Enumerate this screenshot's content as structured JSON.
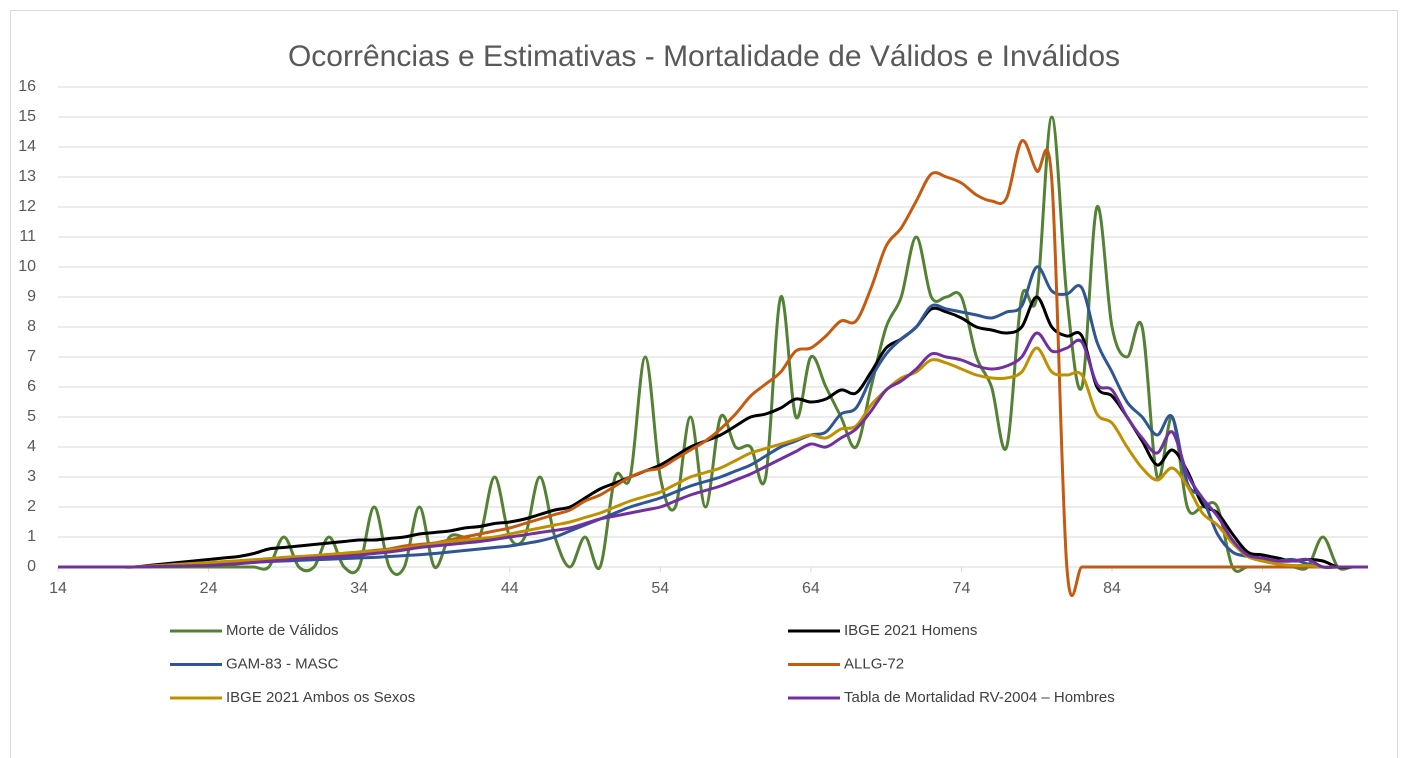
{
  "chart_data": {
    "type": "line",
    "title": "Ocorrências e Estimativas - Mortalidade de Válidos e Inválidos",
    "x": [
      14,
      15,
      16,
      17,
      18,
      19,
      20,
      21,
      22,
      23,
      24,
      25,
      26,
      27,
      28,
      29,
      30,
      31,
      32,
      33,
      34,
      35,
      36,
      37,
      38,
      39,
      40,
      41,
      42,
      43,
      44,
      45,
      46,
      47,
      48,
      49,
      50,
      51,
      52,
      53,
      54,
      55,
      56,
      57,
      58,
      59,
      60,
      61,
      62,
      63,
      64,
      65,
      66,
      67,
      68,
      69,
      70,
      71,
      72,
      73,
      74,
      75,
      76,
      77,
      78,
      79,
      80,
      81,
      82,
      83,
      84,
      85,
      86,
      87,
      88,
      89,
      90,
      91,
      92,
      93,
      94,
      95,
      96,
      97,
      98,
      99,
      100,
      101
    ],
    "xlim": [
      14,
      101
    ],
    "xticks": [
      14,
      24,
      34,
      44,
      54,
      64,
      74,
      84,
      94
    ],
    "ylim": [
      0,
      16
    ],
    "yticks": [
      0,
      1,
      2,
      3,
      4,
      5,
      6,
      7,
      8,
      9,
      10,
      11,
      12,
      13,
      14,
      15,
      16
    ],
    "grid": true,
    "legend": "bottom",
    "series": [
      {
        "name": "Morte de Válidos",
        "color": "#548235",
        "values": [
          0,
          0,
          0,
          0,
          0,
          0,
          0,
          0,
          0,
          0,
          0,
          0,
          0,
          0,
          0,
          1,
          0,
          0,
          1,
          0,
          0,
          2,
          0,
          0,
          2,
          0,
          1,
          1,
          1,
          3,
          1,
          1,
          3,
          1,
          0,
          1,
          0,
          3,
          3,
          7,
          3,
          2,
          5,
          2,
          5,
          4,
          4,
          3,
          9,
          5,
          7,
          6,
          5,
          4,
          6,
          8,
          9,
          11,
          9,
          9,
          9,
          7,
          6,
          4,
          9,
          9,
          15,
          9,
          6,
          12,
          8,
          7,
          8,
          3,
          5,
          2,
          2,
          2,
          0,
          0,
          0,
          0,
          0,
          0,
          1,
          0,
          0,
          0
        ]
      },
      {
        "name": "IBGE 2021  Homens",
        "color": "#000000",
        "values": [
          0,
          0,
          0,
          0,
          0,
          0,
          0.05,
          0.1,
          0.15,
          0.2,
          0.25,
          0.3,
          0.35,
          0.45,
          0.6,
          0.65,
          0.7,
          0.75,
          0.8,
          0.85,
          0.9,
          0.9,
          0.95,
          1.0,
          1.1,
          1.15,
          1.2,
          1.3,
          1.35,
          1.45,
          1.5,
          1.6,
          1.75,
          1.9,
          2.0,
          2.3,
          2.6,
          2.8,
          3.0,
          3.2,
          3.4,
          3.7,
          4.0,
          4.2,
          4.4,
          4.7,
          5.0,
          5.1,
          5.3,
          5.6,
          5.5,
          5.6,
          5.9,
          5.8,
          6.5,
          7.3,
          7.6,
          8.0,
          8.6,
          8.5,
          8.3,
          8.0,
          7.9,
          7.8,
          8.0,
          9.0,
          8.0,
          7.7,
          7.7,
          6.0,
          5.7,
          5.0,
          4.2,
          3.4,
          3.9,
          3.2,
          2.1,
          1.8,
          1.1,
          0.5,
          0.4,
          0.3,
          0.2,
          0.25,
          0.2,
          0,
          0,
          0
        ]
      },
      {
        "name": "GAM-83 - MASC",
        "color": "#2f5597",
        "values": [
          0,
          0,
          0,
          0,
          0,
          0,
          0.02,
          0.04,
          0.06,
          0.08,
          0.1,
          0.12,
          0.14,
          0.16,
          0.18,
          0.2,
          0.22,
          0.24,
          0.26,
          0.28,
          0.3,
          0.32,
          0.35,
          0.38,
          0.41,
          0.45,
          0.5,
          0.55,
          0.6,
          0.65,
          0.7,
          0.78,
          0.87,
          1.0,
          1.2,
          1.4,
          1.6,
          1.8,
          2.0,
          2.15,
          2.3,
          2.5,
          2.7,
          2.85,
          3.0,
          3.2,
          3.4,
          3.7,
          4.0,
          4.2,
          4.4,
          4.5,
          5.1,
          5.3,
          6.3,
          7.1,
          7.6,
          8.0,
          8.7,
          8.6,
          8.5,
          8.4,
          8.3,
          8.5,
          8.7,
          10.0,
          9.2,
          9.1,
          9.3,
          7.5,
          6.5,
          5.5,
          5.0,
          4.4,
          5.0,
          2.8,
          2.3,
          1.1,
          0.5,
          0.35,
          0.2,
          0.2,
          0.25,
          0.1,
          0,
          0,
          0,
          0
        ]
      },
      {
        "name": "ALLG-72",
        "color": "#c55a11",
        "values": [
          0,
          0,
          0,
          0,
          0,
          0,
          0.02,
          0.04,
          0.06,
          0.08,
          0.1,
          0.13,
          0.16,
          0.19,
          0.22,
          0.25,
          0.3,
          0.34,
          0.38,
          0.42,
          0.5,
          0.55,
          0.6,
          0.7,
          0.75,
          0.8,
          0.9,
          1.0,
          1.1,
          1.2,
          1.3,
          1.45,
          1.6,
          1.75,
          1.9,
          2.2,
          2.4,
          2.7,
          3.0,
          3.2,
          3.3,
          3.6,
          3.9,
          4.2,
          4.6,
          5.1,
          5.7,
          6.1,
          6.5,
          7.2,
          7.3,
          7.7,
          8.2,
          8.2,
          9.3,
          10.7,
          11.3,
          12.2,
          13.1,
          13.0,
          12.8,
          12.4,
          12.2,
          12.3,
          14.2,
          13.2,
          12.9,
          0,
          0,
          0,
          0,
          0,
          0,
          0,
          0,
          0,
          0,
          0,
          0,
          0,
          0,
          0,
          0,
          0,
          0,
          0,
          0,
          0
        ]
      },
      {
        "name": "IBGE 2021  Ambos os Sexos",
        "color": "#bf9000",
        "values": [
          0,
          0,
          0,
          0,
          0,
          0,
          0.03,
          0.06,
          0.09,
          0.12,
          0.15,
          0.18,
          0.21,
          0.24,
          0.28,
          0.32,
          0.35,
          0.38,
          0.42,
          0.46,
          0.5,
          0.53,
          0.57,
          0.62,
          0.7,
          0.78,
          0.85,
          0.9,
          0.95,
          1.0,
          1.1,
          1.2,
          1.3,
          1.4,
          1.5,
          1.65,
          1.8,
          2.0,
          2.2,
          2.35,
          2.5,
          2.75,
          3.0,
          3.15,
          3.3,
          3.55,
          3.8,
          3.95,
          4.1,
          4.25,
          4.4,
          4.3,
          4.6,
          4.7,
          5.4,
          5.9,
          6.3,
          6.5,
          6.9,
          6.8,
          6.6,
          6.4,
          6.3,
          6.3,
          6.5,
          7.3,
          6.5,
          6.4,
          6.4,
          5.1,
          4.8,
          4.0,
          3.3,
          2.9,
          3.3,
          2.7,
          1.8,
          1.4,
          0.8,
          0.35,
          0.2,
          0.1,
          0.05,
          0.05,
          0,
          0,
          0,
          0
        ]
      },
      {
        "name": "Tabla de Mortalidad RV-2004 – Hombres",
        "color": "#7030a0",
        "values": [
          0,
          0,
          0,
          0,
          0,
          0,
          0.01,
          0.02,
          0.03,
          0.04,
          0.05,
          0.08,
          0.11,
          0.15,
          0.19,
          0.23,
          0.27,
          0.3,
          0.33,
          0.36,
          0.4,
          0.45,
          0.5,
          0.57,
          0.65,
          0.7,
          0.75,
          0.8,
          0.85,
          0.92,
          1.0,
          1.07,
          1.15,
          1.22,
          1.3,
          1.45,
          1.6,
          1.7,
          1.8,
          1.9,
          2.0,
          2.2,
          2.4,
          2.55,
          2.7,
          2.9,
          3.1,
          3.35,
          3.6,
          3.85,
          4.1,
          4.0,
          4.3,
          4.6,
          5.2,
          5.9,
          6.2,
          6.6,
          7.1,
          7.0,
          6.9,
          6.7,
          6.6,
          6.7,
          7.0,
          7.8,
          7.2,
          7.3,
          7.5,
          6.1,
          5.9,
          5.0,
          4.3,
          3.8,
          4.5,
          3.1,
          2.3,
          1.7,
          0.9,
          0.4,
          0.3,
          0.2,
          0.2,
          0.25,
          0,
          0,
          0,
          0
        ]
      }
    ]
  }
}
